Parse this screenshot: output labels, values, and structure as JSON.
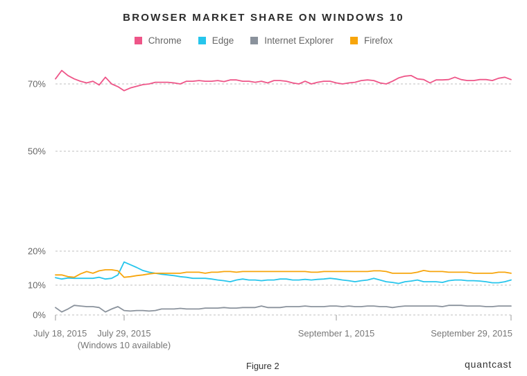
{
  "chart_data": {
    "type": "line",
    "title": "BROWSER MARKET SHARE ON WINDOWS 10",
    "xlabel": "",
    "ylabel": "",
    "legend_placement": "top-center",
    "grid": "horizontal dashed",
    "ylim": [
      0,
      75
    ],
    "y_ticks": [
      {
        "value": 0,
        "label": "0%"
      },
      {
        "value": 10,
        "label": "10%"
      },
      {
        "value": 20,
        "label": "20%"
      },
      {
        "value": 50,
        "label": "50%"
      },
      {
        "value": 70,
        "label": "70%"
      }
    ],
    "x_ticks": [
      {
        "day": 0,
        "label": "July 18, 2015"
      },
      {
        "day": 11,
        "label": "July 29, 2015",
        "sublabel": "(Windows 10 available)"
      },
      {
        "day": 45,
        "label": "September 1, 2015"
      },
      {
        "day": 73,
        "label": "September 29, 2015"
      }
    ],
    "x": [
      0,
      1,
      2,
      3,
      4,
      5,
      6,
      7,
      8,
      9,
      10,
      11,
      12,
      13,
      14,
      15,
      16,
      17,
      18,
      19,
      20,
      21,
      22,
      23,
      24,
      25,
      26,
      27,
      28,
      29,
      30,
      31,
      32,
      33,
      34,
      35,
      36,
      37,
      38,
      39,
      40,
      41,
      42,
      43,
      44,
      45,
      46,
      47,
      48,
      49,
      50,
      51,
      52,
      53,
      54,
      55,
      56,
      57,
      58,
      59,
      60,
      61,
      62,
      63,
      64,
      65,
      66,
      67,
      68,
      69,
      70,
      71,
      72,
      73
    ],
    "series": [
      {
        "name": "Chrome",
        "color": "#ee5588",
        "values": [
          71.5,
          74.0,
          72.5,
          71.5,
          70.8,
          70.3,
          70.8,
          69.7,
          72.0,
          70.0,
          69.2,
          68.0,
          68.8,
          69.3,
          69.8,
          70.0,
          70.5,
          70.5,
          70.5,
          70.3,
          70.0,
          70.8,
          70.8,
          71.0,
          70.8,
          70.8,
          71.0,
          70.7,
          71.2,
          71.2,
          70.8,
          70.8,
          70.5,
          70.8,
          70.3,
          71.0,
          71.0,
          70.8,
          70.3,
          70.0,
          70.8,
          70.0,
          70.5,
          70.8,
          70.8,
          70.3,
          70.0,
          70.3,
          70.5,
          71.0,
          71.2,
          71.0,
          70.3,
          70.0,
          70.8,
          71.8,
          72.3,
          72.5,
          71.5,
          71.3,
          70.3,
          71.2,
          71.2,
          71.3,
          72.0,
          71.3,
          71.0,
          71.0,
          71.3,
          71.3,
          71.0,
          71.7,
          72.0,
          71.3
        ]
      },
      {
        "name": "Edge",
        "color": "#26c5ec",
        "values": [
          12.2,
          11.8,
          12.1,
          12.0,
          12.0,
          12.0,
          12.0,
          12.3,
          11.8,
          12.0,
          13.0,
          16.8,
          16.0,
          15.2,
          14.3,
          13.8,
          13.5,
          13.2,
          13.0,
          12.8,
          12.5,
          12.3,
          12.0,
          12.0,
          12.0,
          11.8,
          11.5,
          11.3,
          11.0,
          11.5,
          11.8,
          11.5,
          11.5,
          11.3,
          11.5,
          11.5,
          11.8,
          11.8,
          11.5,
          11.5,
          11.7,
          11.5,
          11.7,
          11.8,
          12.0,
          11.8,
          11.5,
          11.3,
          11.0,
          11.3,
          11.5,
          12.0,
          11.5,
          11.0,
          10.8,
          10.5,
          11.0,
          11.2,
          11.5,
          11.0,
          11.0,
          11.0,
          10.8,
          11.3,
          11.5,
          11.5,
          11.3,
          11.3,
          11.2,
          11.0,
          10.7,
          10.7,
          11.0,
          11.5
        ]
      },
      {
        "name": "Internet Explorer",
        "color": "#8a929c",
        "values": [
          2.5,
          1.0,
          2.0,
          3.2,
          3.0,
          2.8,
          2.8,
          2.5,
          1.0,
          2.0,
          2.8,
          1.5,
          1.3,
          1.5,
          1.5,
          1.3,
          1.5,
          2.0,
          2.0,
          2.0,
          2.2,
          2.0,
          2.0,
          2.0,
          2.3,
          2.3,
          2.3,
          2.5,
          2.3,
          2.3,
          2.5,
          2.5,
          2.5,
          3.0,
          2.5,
          2.5,
          2.5,
          2.8,
          2.8,
          2.8,
          3.0,
          2.8,
          2.8,
          2.8,
          3.0,
          3.0,
          2.8,
          3.0,
          2.8,
          2.8,
          3.0,
          3.0,
          2.8,
          2.8,
          2.5,
          2.8,
          3.0,
          3.0,
          3.0,
          3.0,
          3.0,
          3.0,
          2.8,
          3.2,
          3.2,
          3.2,
          3.0,
          3.0,
          3.0,
          2.8,
          2.8,
          3.0,
          3.0,
          3.0
        ]
      },
      {
        "name": "Firefox",
        "color": "#f7a50c",
        "values": [
          13.0,
          13.0,
          12.5,
          12.3,
          13.3,
          14.0,
          13.5,
          14.2,
          14.5,
          14.5,
          14.2,
          12.3,
          12.5,
          12.8,
          13.0,
          13.3,
          13.5,
          13.5,
          13.5,
          13.5,
          13.5,
          13.8,
          13.8,
          13.8,
          13.5,
          13.8,
          13.8,
          14.0,
          14.0,
          13.8,
          14.0,
          14.0,
          14.0,
          14.0,
          14.0,
          14.0,
          14.0,
          14.0,
          14.0,
          14.0,
          14.0,
          13.8,
          13.8,
          14.0,
          14.0,
          14.0,
          14.0,
          14.0,
          14.0,
          14.0,
          14.0,
          14.2,
          14.2,
          14.0,
          13.5,
          13.5,
          13.5,
          13.5,
          13.8,
          14.3,
          14.0,
          14.0,
          14.0,
          13.8,
          13.8,
          13.8,
          13.8,
          13.5,
          13.5,
          13.5,
          13.5,
          13.8,
          13.8,
          13.5
        ]
      }
    ]
  },
  "footer": {
    "figure_label": "Figure 2",
    "brand": "quantcast"
  }
}
